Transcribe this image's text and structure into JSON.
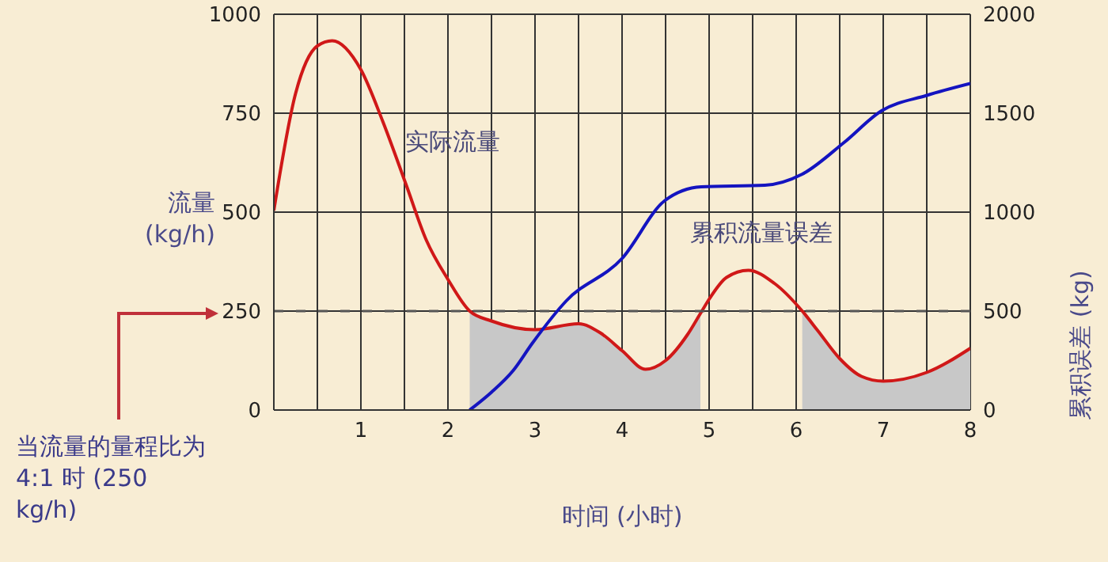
{
  "chart_data": {
    "type": "line",
    "xlabel": "时间 (小时)",
    "ylabel": "流量 (kg/h)",
    "y2label": "累积误差 (kg)",
    "annotations": [
      "当流量的量程比为 4:1 时 (250 kg/h)"
    ],
    "xlim": [
      0,
      8
    ],
    "xticks": [
      {
        "value": 0,
        "label": null
      },
      {
        "value": 0.5,
        "label": null
      },
      1,
      {
        "value": 1.5,
        "label": null
      },
      2,
      {
        "value": 2.5,
        "label": null
      },
      3,
      {
        "value": 3.5,
        "label": null
      },
      4,
      {
        "value": 4.5,
        "label": null
      },
      5,
      {
        "value": 5.5,
        "label": null
      },
      6,
      {
        "value": 6.5,
        "label": null
      },
      7,
      {
        "value": 7.5,
        "label": null
      },
      8
    ],
    "ylim": [
      0,
      1000
    ],
    "yticks": [
      0,
      250,
      500,
      750,
      1000
    ],
    "y2lim": [
      0,
      2000
    ],
    "y2ticks": [
      0,
      500,
      1000,
      1500,
      2000
    ],
    "grid": true,
    "ref_lines": [
      {
        "axis": "y",
        "value": 250,
        "color": "#555555",
        "line_style": "dashed"
      }
    ],
    "series": [
      {
        "type": "area",
        "color": "#c8c8c8",
        "x": [
          2.25,
          2.5,
          3.0,
          3.5,
          3.75,
          4.0,
          4.27,
          4.5,
          4.75,
          4.9,
          5.5,
          6.07,
          6.25,
          6.5,
          6.75,
          7.0,
          7.5,
          8
        ],
        "values": [
          250,
          225,
          203,
          218,
          195,
          150,
          103,
          125,
          190,
          244,
          null,
          250,
          200,
          130,
          85,
          73,
          95,
          156
        ]
      },
      {
        "name": "实际流量",
        "color": "#d01818",
        "x": [
          0,
          0.25,
          0.5,
          0.67,
          1.0,
          1.25,
          1.52,
          1.75,
          2.0,
          2.25,
          2.5,
          3.0,
          3.5,
          3.75,
          4.0,
          4.27,
          4.5,
          4.75,
          4.9,
          5.0,
          5.2,
          5.45,
          5.75,
          6.07,
          6.25,
          6.5,
          6.75,
          7.0,
          7.5,
          8
        ],
        "values": [
          504,
          800,
          920,
          933,
          860,
          730,
          569,
          430,
          330,
          250,
          225,
          203,
          218,
          195,
          150,
          103,
          125,
          190,
          244,
          280,
          335,
          353,
          320,
          250,
          200,
          130,
          85,
          73,
          95,
          156
        ]
      },
      {
        "name": "累积流量误差",
        "color": "#1414c0",
        "axis": "y2",
        "x": [
          2.25,
          2.5,
          2.75,
          2.97,
          3.36,
          4.0,
          4.49,
          4.91,
          5.64,
          6.07,
          6.55,
          6.98,
          7.5,
          8
        ],
        "values": [
          0,
          90,
          200,
          338,
          552,
          766,
          1058,
          1128,
          1136,
          1192,
          1352,
          1512,
          1590,
          1650
        ]
      }
    ]
  }
}
